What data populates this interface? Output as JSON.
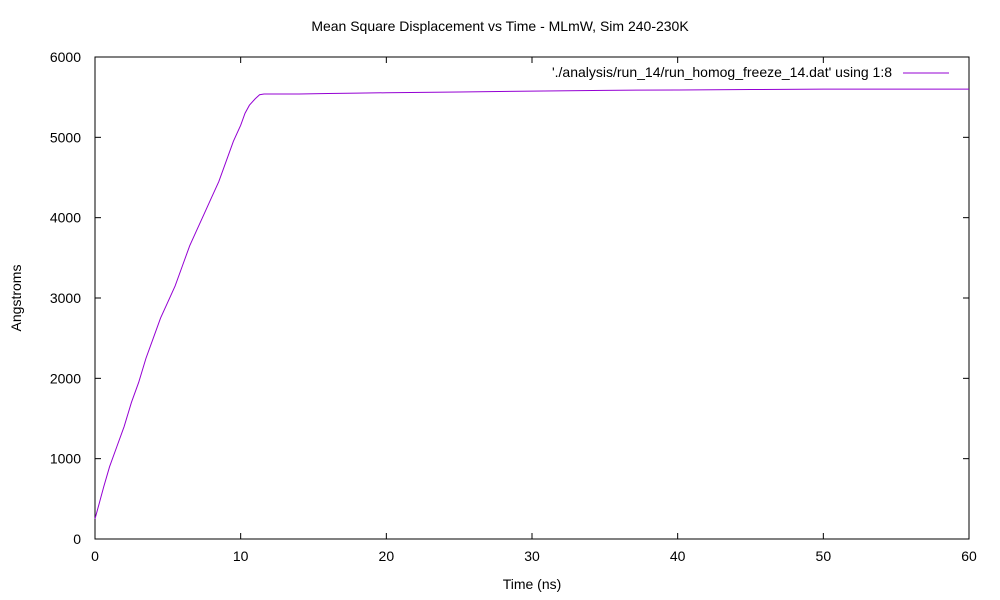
{
  "chart_data": {
    "type": "line",
    "title": "Mean Square Displacement vs Time - MLmW, Sim 240-230K",
    "xlabel": "Time (ns)",
    "ylabel": "Angstroms",
    "xlim": [
      0,
      60
    ],
    "ylim": [
      0,
      6000
    ],
    "xticks": [
      0,
      10,
      20,
      30,
      40,
      50,
      60
    ],
    "yticks": [
      0,
      1000,
      2000,
      3000,
      4000,
      5000,
      6000
    ],
    "grid": false,
    "legend_position": "top-right",
    "series": [
      {
        "name": "'./analysis/run_14/run_homog_freeze_14.dat' using 1:8",
        "color": "#9400d3",
        "x": [
          0,
          0.3,
          0.6,
          1,
          1.5,
          2,
          2.5,
          3,
          3.5,
          4,
          4.5,
          5,
          5.5,
          6,
          6.5,
          7,
          7.5,
          8,
          8.5,
          9,
          9.5,
          10,
          10.3,
          10.6,
          11,
          11.3,
          11.6,
          12,
          14,
          16,
          18,
          20,
          25,
          30,
          35,
          40,
          45,
          50,
          55,
          60
        ],
        "y": [
          250,
          450,
          650,
          900,
          1150,
          1400,
          1700,
          1950,
          2250,
          2500,
          2750,
          2950,
          3150,
          3400,
          3650,
          3850,
          4050,
          4250,
          4450,
          4700,
          4950,
          5150,
          5300,
          5400,
          5480,
          5530,
          5540,
          5540,
          5540,
          5545,
          5550,
          5555,
          5565,
          5575,
          5585,
          5590,
          5595,
          5600,
          5600,
          5600
        ]
      }
    ]
  }
}
